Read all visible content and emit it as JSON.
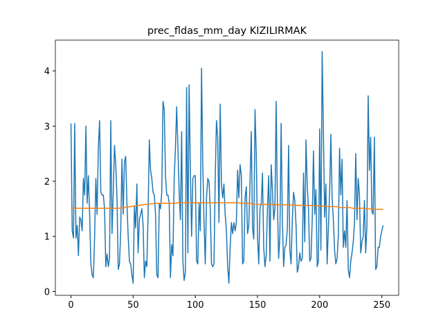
{
  "chart_data": {
    "type": "line",
    "title": "prec_fldas_mm_day KIZILIRMAK",
    "x": [
      0,
      1,
      2,
      3,
      4,
      5,
      6,
      7,
      8,
      9,
      10,
      11,
      12,
      13,
      14,
      15,
      16,
      17,
      18,
      19,
      20,
      21,
      22,
      23,
      24,
      25,
      26,
      27,
      28,
      29,
      30,
      31,
      32,
      33,
      34,
      35,
      36,
      37,
      38,
      39,
      40,
      41,
      42,
      43,
      44,
      45,
      46,
      47,
      48,
      49,
      50,
      51,
      52,
      53,
      54,
      55,
      56,
      57,
      58,
      59,
      60,
      61,
      62,
      63,
      64,
      65,
      66,
      67,
      68,
      69,
      70,
      71,
      72,
      73,
      74,
      75,
      76,
      77,
      78,
      79,
      80,
      81,
      82,
      83,
      84,
      85,
      86,
      87,
      88,
      89,
      90,
      91,
      92,
      93,
      94,
      95,
      96,
      97,
      98,
      99,
      100,
      101,
      102,
      103,
      104,
      105,
      106,
      107,
      108,
      109,
      110,
      111,
      112,
      113,
      114,
      115,
      116,
      117,
      118,
      119,
      120,
      121,
      122,
      123,
      124,
      125,
      126,
      127,
      128,
      129,
      130,
      131,
      132,
      133,
      134,
      135,
      136,
      137,
      138,
      139,
      140,
      141,
      142,
      143,
      144,
      145,
      146,
      147,
      148,
      149,
      150,
      151,
      152,
      153,
      154,
      155,
      156,
      157,
      158,
      159,
      160,
      161,
      162,
      163,
      164,
      165,
      166,
      167,
      168,
      169,
      170,
      171,
      172,
      173,
      174,
      175,
      176,
      177,
      178,
      179,
      180,
      181,
      182,
      183,
      184,
      185,
      186,
      187,
      188,
      189,
      190,
      191,
      192,
      193,
      194,
      195,
      196,
      197,
      198,
      199,
      200,
      201,
      202,
      203,
      204,
      205,
      206,
      207,
      208,
      209,
      210,
      211,
      212,
      213,
      214,
      215,
      216,
      217,
      218,
      219,
      220,
      221,
      222,
      223,
      224,
      225,
      226,
      227,
      228,
      229,
      230,
      231,
      232,
      233,
      234,
      235,
      236,
      237,
      238,
      239,
      240,
      241,
      242,
      243,
      244,
      245,
      246,
      247,
      248,
      249,
      250,
      251
    ],
    "series": [
      {
        "color": "#1f77b4",
        "values": [
          3.05,
          1.1,
          0.97,
          3.05,
          0.97,
          1.2,
          0.65,
          1.35,
          1.3,
          1.1,
          2.05,
          1.75,
          3.0,
          1.6,
          2.1,
          1.4,
          0.5,
          0.3,
          0.25,
          1.0,
          2.05,
          1.4,
          2.6,
          3.1,
          1.8,
          1.75,
          1.75,
          1.5,
          0.45,
          0.68,
          0.45,
          0.6,
          3.1,
          1.05,
          1.8,
          2.65,
          2.3,
          1.7,
          0.4,
          0.5,
          1.1,
          2.4,
          1.4,
          2.35,
          2.45,
          1.6,
          1.0,
          0.55,
          0.5,
          0.3,
          0.15,
          1.55,
          1.15,
          1.95,
          0.7,
          1.3,
          1.4,
          1.5,
          1.2,
          0.25,
          0.55,
          0.45,
          1.4,
          2.75,
          2.2,
          2.05,
          1.8,
          1.75,
          1.4,
          0.3,
          0.25,
          1.6,
          1.5,
          1.8,
          3.45,
          3.3,
          2.1,
          1.75,
          1.75,
          1.6,
          0.25,
          0.85,
          0.65,
          2.05,
          2.6,
          3.35,
          2.6,
          1.8,
          1.3,
          2.9,
          0.55,
          0.2,
          0.35,
          3.7,
          0.7,
          3.75,
          2.2,
          1.0,
          2.05,
          2.1,
          2.1,
          0.55,
          0.5,
          1.6,
          1.1,
          4.05,
          2.3,
          1.25,
          0.5,
          1.7,
          2.05,
          2.0,
          1.5,
          0.5,
          0.45,
          0.5,
          2.05,
          3.1,
          2.8,
          1.25,
          3.4,
          1.95,
          1.7,
          1.95,
          1.4,
          1.1,
          0.45,
          0.15,
          0.8,
          1.25,
          1.05,
          1.25,
          1.1,
          1.25,
          2.2,
          1.7,
          2.3,
          2.1,
          0.5,
          0.55,
          1.7,
          1.9,
          1.05,
          1.2,
          2.0,
          2.9,
          1.15,
          0.95,
          3.3,
          2.5,
          1.0,
          0.5,
          1.5,
          1.6,
          2.15,
          0.8,
          0.45,
          0.65,
          1.5,
          2.1,
          0.55,
          2.3,
          1.85,
          1.3,
          1.5,
          3.45,
          1.6,
          0.6,
          1.0,
          3.05,
          1.3,
          0.45,
          0.8,
          0.85,
          1.15,
          2.65,
          0.75,
          0.5,
          1.3,
          1.8,
          1.65,
          1.2,
          0.35,
          0.45,
          0.7,
          0.55,
          0.6,
          2.15,
          0.9,
          2.75,
          1.9,
          1.5,
          0.55,
          0.6,
          1.3,
          2.55,
          1.4,
          1.85,
          0.45,
          0.55,
          2.95,
          0.75,
          4.35,
          2.9,
          1.35,
          1.95,
          0.5,
          1.15,
          1.8,
          2.85,
          1.7,
          1.3,
          0.75,
          0.5,
          0.6,
          1.0,
          2.6,
          1.75,
          2.4,
          0.8,
          1.1,
          0.8,
          1.65,
          0.4,
          0.25,
          0.55,
          0.7,
          0.9,
          1.25,
          2.5,
          1.3,
          2.05,
          1.75,
          0.7,
          0.9,
          1.0,
          1.65,
          0.7,
          1.2,
          3.55,
          2.2,
          2.8,
          1.45,
          1.4,
          2.8,
          0.4,
          0.45,
          0.8,
          0.8,
          1.0,
          1.1,
          1.2
        ]
      },
      {
        "color": "#ff7f0e",
        "values": [
          1.51,
          1.51,
          1.51,
          1.51,
          1.51,
          1.51,
          1.51,
          1.51,
          1.51,
          1.51,
          1.51,
          1.51,
          1.51,
          1.51,
          1.51,
          1.51,
          1.51,
          1.51,
          1.51,
          1.51,
          1.51,
          1.51,
          1.51,
          1.51,
          1.51,
          1.51,
          1.51,
          1.51,
          1.51,
          1.51,
          1.51,
          1.51,
          1.51,
          1.51,
          1.51,
          1.51,
          1.51,
          1.51,
          1.51,
          1.51,
          1.51,
          1.52,
          1.52,
          1.52,
          1.53,
          1.53,
          1.53,
          1.54,
          1.54,
          1.54,
          1.55,
          1.55,
          1.55,
          1.56,
          1.56,
          1.56,
          1.57,
          1.57,
          1.57,
          1.58,
          1.58,
          1.58,
          1.58,
          1.59,
          1.59,
          1.59,
          1.59,
          1.6,
          1.6,
          1.6,
          1.6,
          1.6,
          1.6,
          1.6,
          1.6,
          1.6,
          1.6,
          1.6,
          1.6,
          1.6,
          1.6,
          1.6,
          1.6,
          1.6,
          1.6,
          1.61,
          1.61,
          1.61,
          1.61,
          1.61,
          1.61,
          1.61,
          1.61,
          1.61,
          1.61,
          1.61,
          1.61,
          1.61,
          1.61,
          1.61,
          1.61,
          1.61,
          1.61,
          1.61,
          1.61,
          1.61,
          1.61,
          1.61,
          1.61,
          1.61,
          1.61,
          1.61,
          1.61,
          1.61,
          1.61,
          1.61,
          1.61,
          1.61,
          1.61,
          1.61,
          1.61,
          1.61,
          1.61,
          1.61,
          1.61,
          1.61,
          1.61,
          1.61,
          1.61,
          1.61,
          1.61,
          1.61,
          1.61,
          1.61,
          1.61,
          1.61,
          1.6,
          1.6,
          1.6,
          1.6,
          1.6,
          1.6,
          1.6,
          1.6,
          1.6,
          1.6,
          1.58,
          1.58,
          1.58,
          1.58,
          1.58,
          1.58,
          1.58,
          1.58,
          1.58,
          1.58,
          1.58,
          1.58,
          1.58,
          1.58,
          1.58,
          1.58,
          1.58,
          1.58,
          1.58,
          1.58,
          1.57,
          1.57,
          1.57,
          1.57,
          1.57,
          1.57,
          1.57,
          1.57,
          1.57,
          1.57,
          1.57,
          1.57,
          1.57,
          1.57,
          1.57,
          1.56,
          1.56,
          1.56,
          1.56,
          1.56,
          1.56,
          1.56,
          1.56,
          1.56,
          1.56,
          1.56,
          1.56,
          1.56,
          1.56,
          1.56,
          1.55,
          1.55,
          1.55,
          1.55,
          1.55,
          1.55,
          1.55,
          1.55,
          1.55,
          1.55,
          1.54,
          1.54,
          1.54,
          1.54,
          1.54,
          1.54,
          1.54,
          1.54,
          1.54,
          1.54,
          1.52,
          1.52,
          1.52,
          1.52,
          1.52,
          1.52,
          1.52,
          1.52,
          1.52,
          1.52,
          1.51,
          1.51,
          1.51,
          1.51,
          1.51,
          1.51,
          1.51,
          1.51,
          1.51,
          1.51,
          1.5,
          1.5,
          1.5,
          1.5,
          1.5,
          1.5,
          1.5,
          1.5,
          1.49,
          1.49,
          1.49,
          1.49,
          1.49,
          1.49,
          1.49,
          1.49
        ]
      }
    ],
    "xlim": [
      -12.55,
      263.55
    ],
    "xticks": [
      0,
      50,
      100,
      150,
      200,
      250
    ],
    "ylim": [
      -0.07,
      4.56
    ],
    "yticks": [
      0,
      1,
      2,
      3,
      4
    ]
  }
}
